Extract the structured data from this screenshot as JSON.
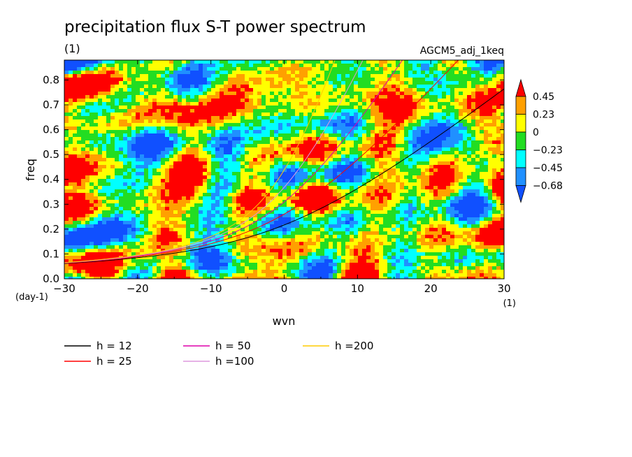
{
  "chart_data": {
    "type": "heatmap",
    "title": "precipitation flux S-T power spectrum",
    "subtitle_left": "(1)",
    "subtitle_right": "AGCM5_adj_1keq",
    "xlabel": "wvn",
    "ylabel": "freq",
    "x_unit": "(1)",
    "y_unit": "(day-1)",
    "xlim": [
      -30,
      30
    ],
    "ylim": [
      0,
      0.88
    ],
    "x_ticks": [
      -30,
      -20,
      -10,
      0,
      10,
      20,
      30
    ],
    "x_tick_labels": [
      "−30",
      "−20",
      "−10",
      "0",
      "10",
      "20",
      "30"
    ],
    "y_ticks": [
      0.0,
      0.1,
      0.2,
      0.3,
      0.4,
      0.5,
      0.6,
      0.7,
      0.8
    ],
    "y_tick_labels": [
      "0.0",
      "0.1",
      "0.2",
      "0.3",
      "0.4",
      "0.5",
      "0.6",
      "0.7",
      "0.8"
    ],
    "colorbar": {
      "levels": [
        0.45,
        0.23,
        0,
        -0.23,
        -0.45,
        -0.68
      ],
      "labels": [
        "0.45",
        "0.23",
        "0",
        "−0.23",
        "−0.45",
        "−0.68"
      ],
      "colors": [
        "#ff0000",
        "#ffa000",
        "#ffff00",
        "#22dd22",
        "#00ffff",
        "#2090ff",
        "#1050ff"
      ]
    },
    "series": [
      {
        "name": "h = 12",
        "h": 12,
        "color": "#000000"
      },
      {
        "name": "h = 25",
        "h": 25,
        "color": "#ff0000"
      },
      {
        "name": "h = 50",
        "h": 50,
        "color": "#dd00aa"
      },
      {
        "name": "h =100",
        "h": 100,
        "color": "#dd99dd"
      },
      {
        "name": "h =200",
        "h": 200,
        "color": "#ffcc00"
      }
    ]
  }
}
